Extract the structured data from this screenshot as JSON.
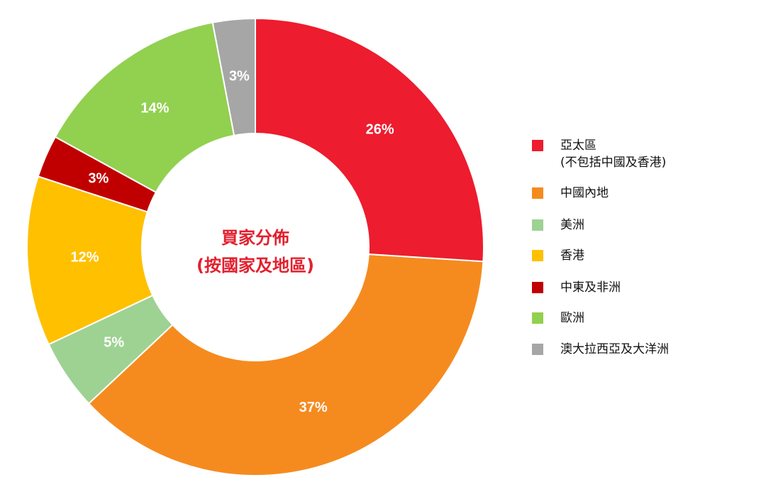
{
  "chart_data": {
    "type": "donut",
    "title": "買家分佈",
    "subtitle": "(按國家及地區)",
    "categories": [
      "亞太區\n(不包括中國及香港)",
      "中國內地",
      "美洲",
      "香港",
      "中東及非洲",
      "歐洲",
      "澳大拉西亞及大洋洲"
    ],
    "values": [
      26,
      37,
      5,
      12,
      3,
      14,
      3
    ],
    "value_labels": [
      "26%",
      "37%",
      "5%",
      "12%",
      "3%",
      "14%",
      "3%"
    ],
    "colors": [
      "#ed1c2e",
      "#f58b1f",
      "#9ed293",
      "#ffc000",
      "#c00000",
      "#92d050",
      "#a6a6a6"
    ],
    "legend": "right"
  }
}
